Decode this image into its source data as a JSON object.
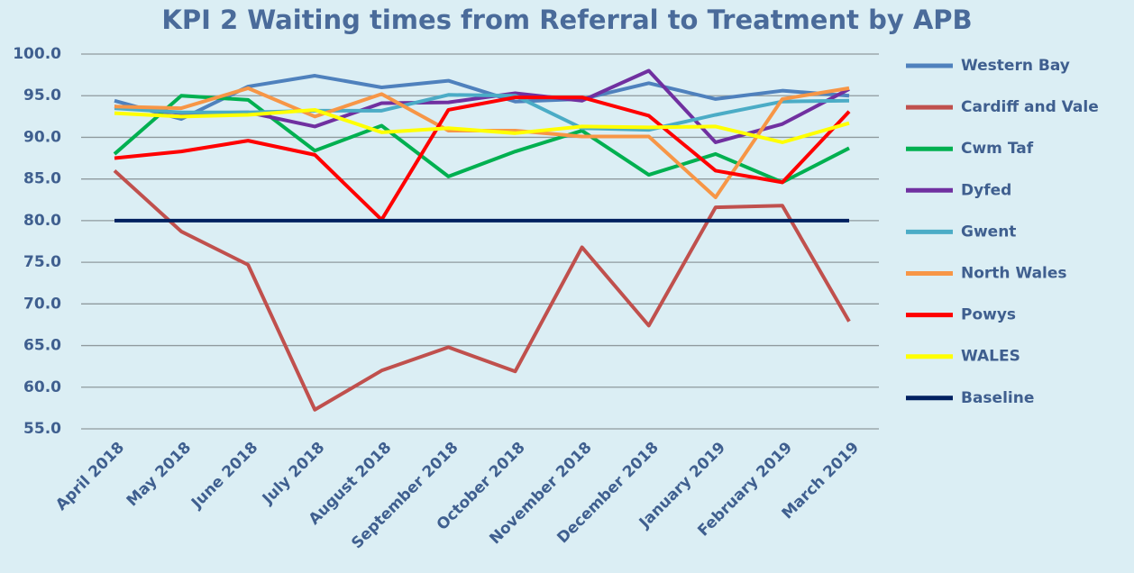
{
  "chart_data": {
    "type": "line",
    "title": "KPI 2 Waiting times from Referral to Treatment by APB",
    "categories": [
      "April 2018",
      "May 2018",
      "June 2018",
      "July 2018",
      "August 2018",
      "September 2018",
      "October 2018",
      "November 2018",
      "December 2018",
      "January 2019",
      "February 2019",
      "March 2019"
    ],
    "series": [
      {
        "name": "Western Bay",
        "color": "#4f81bd",
        "values": [
          94.4,
          92.2,
          96.1,
          97.4,
          96.0,
          96.8,
          94.3,
          94.6,
          96.5,
          94.6,
          95.6,
          95.0
        ]
      },
      {
        "name": "Cardiff and Vale",
        "color": "#c0504d",
        "values": [
          86.0,
          78.7,
          74.7,
          57.3,
          62.0,
          64.8,
          61.9,
          76.8,
          67.4,
          81.6,
          81.8,
          67.9
        ]
      },
      {
        "name": "Cwm Taf",
        "color": "#00b050",
        "values": [
          88.0,
          95.0,
          94.5,
          88.4,
          91.4,
          85.3,
          88.3,
          90.8,
          85.5,
          88.0,
          84.6,
          88.7
        ]
      },
      {
        "name": "Dyfed",
        "color": "#7030a0",
        "values": [
          93.7,
          92.9,
          93.0,
          91.3,
          94.1,
          94.2,
          95.3,
          94.4,
          98.0,
          89.4,
          91.6,
          95.8
        ]
      },
      {
        "name": "Gwent",
        "color": "#4bacc6",
        "values": [
          93.5,
          93.0,
          93.0,
          93.2,
          93.2,
          95.1,
          95.0,
          91.1,
          90.9,
          92.7,
          94.3,
          94.4
        ]
      },
      {
        "name": "North Wales",
        "color": "#f79646",
        "values": [
          93.7,
          93.5,
          95.9,
          92.5,
          95.2,
          90.8,
          90.8,
          90.1,
          90.1,
          82.8,
          94.6,
          95.9
        ]
      },
      {
        "name": "Powys",
        "color": "#ff0000",
        "values": [
          87.5,
          88.3,
          89.6,
          87.9,
          80.1,
          93.3,
          94.8,
          94.8,
          92.6,
          86.0,
          84.6,
          93.1
        ]
      },
      {
        "name": "WALES",
        "color": "#ffff00",
        "values": [
          92.9,
          92.5,
          92.7,
          93.3,
          90.6,
          91.1,
          90.5,
          91.3,
          91.2,
          91.3,
          89.4,
          91.7
        ]
      },
      {
        "name": "Baseline",
        "color": "#002060",
        "values": [
          80,
          80,
          80,
          80,
          80,
          80,
          80,
          80,
          80,
          80,
          80,
          80
        ]
      }
    ],
    "ylim": [
      55,
      100
    ],
    "yticks": [
      {
        "value": 55,
        "label": "55.0"
      },
      {
        "value": 60,
        "label": "60.0"
      },
      {
        "value": 65,
        "label": "65.0"
      },
      {
        "value": 70,
        "label": "70.0"
      },
      {
        "value": 75,
        "label": "75.0"
      },
      {
        "value": 80,
        "label": "80.0"
      },
      {
        "value": 85,
        "label": "85.0"
      },
      {
        "value": 90,
        "label": "90.0"
      },
      {
        "value": 95,
        "label": "95.0"
      },
      {
        "value": 100,
        "label": "100.0"
      }
    ],
    "grid": true,
    "legend": "right"
  }
}
